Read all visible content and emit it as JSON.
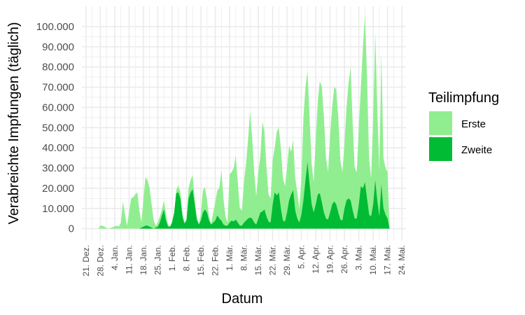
{
  "chart_data": {
    "type": "area",
    "stacked": true,
    "xlabel": "Datum",
    "ylabel": "Verabreichte Impfungen (täglich)",
    "x_domain": [
      "2020-12-19",
      "2021-05-26"
    ],
    "ylim": [
      -6000,
      110000
    ],
    "y_ticks": [
      0,
      10000,
      20000,
      30000,
      40000,
      50000,
      60000,
      70000,
      80000,
      90000,
      100000
    ],
    "y_tick_labels": [
      "0",
      "10.000",
      "20.000",
      "30.000",
      "40.000",
      "50.000",
      "60.000",
      "70.000",
      "80.000",
      "90.000",
      "100.000"
    ],
    "x_ticks": [
      "2020-12-21",
      "2020-12-28",
      "2021-01-04",
      "2021-01-11",
      "2021-01-18",
      "2021-01-25",
      "2021-02-01",
      "2021-02-08",
      "2021-02-15",
      "2021-02-22",
      "2021-03-01",
      "2021-03-08",
      "2021-03-15",
      "2021-03-22",
      "2021-03-29",
      "2021-04-05",
      "2021-04-12",
      "2021-04-19",
      "2021-04-26",
      "2021-05-03",
      "2021-05-10",
      "2021-05-17",
      "2021-05-24"
    ],
    "x_tick_labels": [
      "21. Dez.",
      "28. Dez.",
      "4. Jan.",
      "11. Jan.",
      "18. Jan.",
      "25. Jan.",
      "1. Feb.",
      "8. Feb.",
      "15. Feb.",
      "22. Feb.",
      "1. Mär.",
      "8. Mär.",
      "15. Mär.",
      "22. Mär.",
      "29. Mär.",
      "5. Apr.",
      "12. Apr.",
      "19. Apr.",
      "26. Apr.",
      "3. Mai.",
      "10. Mai.",
      "17. Mai.",
      "24. Mai."
    ],
    "grid": true,
    "legend_position": "right",
    "legend_title": "Teilimpfung",
    "colors": {
      "Erste": "#90ee90",
      "Zweite": "#00bb33"
    },
    "series": [
      {
        "name": "Erste",
        "points": [
          [
            "2020-12-27",
            0
          ],
          [
            "2020-12-28",
            1500
          ],
          [
            "2020-12-29",
            1500
          ],
          [
            "2020-12-30",
            1000
          ],
          [
            "2020-12-31",
            300
          ],
          [
            "2021-01-01",
            0
          ],
          [
            "2021-01-05",
            1500
          ],
          [
            "2021-01-06",
            1000
          ],
          [
            "2021-01-07",
            3000
          ],
          [
            "2021-01-08",
            13500
          ],
          [
            "2021-01-09",
            7000
          ],
          [
            "2021-01-10",
            1500
          ],
          [
            "2021-01-12",
            15000
          ],
          [
            "2021-01-13",
            15500
          ],
          [
            "2021-01-14",
            17000
          ],
          [
            "2021-01-15",
            18000
          ],
          [
            "2021-01-16",
            9000
          ],
          [
            "2021-01-17",
            3000
          ],
          [
            "2021-01-18",
            14500
          ],
          [
            "2021-01-19",
            25500
          ],
          [
            "2021-01-20",
            24000
          ],
          [
            "2021-01-21",
            20000
          ],
          [
            "2021-01-22",
            12000
          ],
          [
            "2021-01-23",
            4000
          ],
          [
            "2021-01-24",
            1500
          ],
          [
            "2021-01-25",
            3000
          ],
          [
            "2021-01-26",
            6000
          ],
          [
            "2021-01-27",
            9500
          ],
          [
            "2021-01-28",
            14000
          ],
          [
            "2021-01-29",
            7000
          ],
          [
            "2021-01-30",
            2000
          ],
          [
            "2021-01-31",
            1000
          ],
          [
            "2021-02-01",
            4000
          ],
          [
            "2021-02-02",
            8000
          ],
          [
            "2021-02-03",
            19000
          ],
          [
            "2021-02-04",
            21500
          ],
          [
            "2021-02-05",
            18000
          ],
          [
            "2021-02-06",
            8000
          ],
          [
            "2021-02-07",
            3000
          ],
          [
            "2021-02-08",
            5000
          ],
          [
            "2021-02-09",
            20000
          ],
          [
            "2021-02-10",
            24000
          ],
          [
            "2021-02-11",
            26500
          ],
          [
            "2021-02-12",
            15000
          ],
          [
            "2021-02-13",
            6000
          ],
          [
            "2021-02-14",
            2500
          ],
          [
            "2021-02-15",
            7000
          ],
          [
            "2021-02-16",
            19000
          ],
          [
            "2021-02-17",
            20500
          ],
          [
            "2021-02-18",
            14000
          ],
          [
            "2021-02-19",
            6000
          ],
          [
            "2021-02-20",
            2500
          ],
          [
            "2021-02-22",
            13000
          ],
          [
            "2021-02-23",
            19000
          ],
          [
            "2021-02-24",
            20000
          ],
          [
            "2021-02-25",
            29000
          ],
          [
            "2021-02-26",
            15000
          ],
          [
            "2021-02-27",
            6000
          ],
          [
            "2021-02-28",
            3000
          ],
          [
            "2021-03-01",
            27000
          ],
          [
            "2021-03-02",
            28000
          ],
          [
            "2021-03-03",
            30000
          ],
          [
            "2021-03-04",
            36000
          ],
          [
            "2021-03-05",
            23000
          ],
          [
            "2021-03-06",
            10000
          ],
          [
            "2021-03-07",
            9000
          ],
          [
            "2021-03-08",
            23000
          ],
          [
            "2021-03-09",
            32000
          ],
          [
            "2021-03-10",
            44000
          ],
          [
            "2021-03-11",
            58000
          ],
          [
            "2021-03-12",
            45000
          ],
          [
            "2021-03-13",
            28000
          ],
          [
            "2021-03-14",
            16000
          ],
          [
            "2021-03-15",
            28000
          ],
          [
            "2021-03-16",
            36000
          ],
          [
            "2021-03-17",
            53000
          ],
          [
            "2021-03-18",
            48000
          ],
          [
            "2021-03-19",
            30000
          ],
          [
            "2021-03-20",
            17000
          ],
          [
            "2021-03-21",
            15000
          ],
          [
            "2021-03-22",
            34000
          ],
          [
            "2021-03-23",
            40000
          ],
          [
            "2021-03-24",
            48000
          ],
          [
            "2021-03-25",
            50000
          ],
          [
            "2021-03-26",
            40000
          ],
          [
            "2021-03-27",
            25000
          ],
          [
            "2021-03-28",
            21000
          ],
          [
            "2021-03-29",
            30000
          ],
          [
            "2021-03-30",
            41000
          ],
          [
            "2021-03-31",
            38000
          ],
          [
            "2021-04-01",
            44000
          ],
          [
            "2021-04-02",
            25000
          ],
          [
            "2021-04-03",
            18000
          ],
          [
            "2021-04-04",
            10000
          ],
          [
            "2021-04-05",
            24000
          ],
          [
            "2021-04-06",
            55000
          ],
          [
            "2021-04-07",
            70000
          ],
          [
            "2021-04-08",
            78000
          ],
          [
            "2021-04-09",
            55000
          ],
          [
            "2021-04-10",
            32000
          ],
          [
            "2021-04-11",
            23000
          ],
          [
            "2021-04-12",
            44000
          ],
          [
            "2021-04-13",
            63000
          ],
          [
            "2021-04-14",
            73000
          ],
          [
            "2021-04-15",
            70000
          ],
          [
            "2021-04-16",
            55000
          ],
          [
            "2021-04-17",
            35000
          ],
          [
            "2021-04-18",
            28000
          ],
          [
            "2021-04-19",
            46000
          ],
          [
            "2021-04-20",
            60000
          ],
          [
            "2021-04-21",
            70000
          ],
          [
            "2021-04-22",
            69000
          ],
          [
            "2021-04-23",
            55000
          ],
          [
            "2021-04-24",
            34000
          ],
          [
            "2021-04-25",
            28000
          ],
          [
            "2021-04-26",
            42000
          ],
          [
            "2021-04-27",
            60000
          ],
          [
            "2021-04-28",
            72000
          ],
          [
            "2021-04-29",
            80000
          ],
          [
            "2021-04-30",
            52000
          ],
          [
            "2021-05-01",
            30000
          ],
          [
            "2021-05-02",
            28000
          ],
          [
            "2021-05-03",
            50000
          ],
          [
            "2021-05-04",
            70000
          ],
          [
            "2021-05-05",
            90000
          ],
          [
            "2021-05-06",
            106000
          ],
          [
            "2021-05-07",
            75000
          ],
          [
            "2021-05-08",
            35000
          ],
          [
            "2021-05-09",
            25000
          ],
          [
            "2021-05-10",
            55000
          ],
          [
            "2021-05-11",
            97000
          ],
          [
            "2021-05-12",
            60000
          ],
          [
            "2021-05-13",
            28000
          ],
          [
            "2021-05-14",
            87000
          ],
          [
            "2021-05-15",
            35000
          ],
          [
            "2021-05-16",
            30000
          ],
          [
            "2021-05-17",
            28000
          ],
          [
            "2021-05-18",
            0
          ]
        ]
      },
      {
        "name": "Zweite",
        "points": [
          [
            "2021-01-16",
            0
          ],
          [
            "2021-01-17",
            500
          ],
          [
            "2021-01-18",
            1000
          ],
          [
            "2021-01-19",
            1500
          ],
          [
            "2021-01-20",
            1500
          ],
          [
            "2021-01-21",
            1000
          ],
          [
            "2021-01-22",
            500
          ],
          [
            "2021-01-23",
            0
          ],
          [
            "2021-01-25",
            1000
          ],
          [
            "2021-01-26",
            3000
          ],
          [
            "2021-01-27",
            6500
          ],
          [
            "2021-01-28",
            9500
          ],
          [
            "2021-01-29",
            4000
          ],
          [
            "2021-01-30",
            1000
          ],
          [
            "2021-01-31",
            1000
          ],
          [
            "2021-02-01",
            3000
          ],
          [
            "2021-02-02",
            8000
          ],
          [
            "2021-02-03",
            17500
          ],
          [
            "2021-02-04",
            18000
          ],
          [
            "2021-02-05",
            15000
          ],
          [
            "2021-02-06",
            6000
          ],
          [
            "2021-02-07",
            2500
          ],
          [
            "2021-02-08",
            4000
          ],
          [
            "2021-02-09",
            15000
          ],
          [
            "2021-02-10",
            18000
          ],
          [
            "2021-02-11",
            19500
          ],
          [
            "2021-02-12",
            12000
          ],
          [
            "2021-02-13",
            4500
          ],
          [
            "2021-02-14",
            2000
          ],
          [
            "2021-02-15",
            4000
          ],
          [
            "2021-02-16",
            8000
          ],
          [
            "2021-02-17",
            9500
          ],
          [
            "2021-02-18",
            8000
          ],
          [
            "2021-02-19",
            4000
          ],
          [
            "2021-02-20",
            2000
          ],
          [
            "2021-02-22",
            4000
          ],
          [
            "2021-02-23",
            6500
          ],
          [
            "2021-02-24",
            5000
          ],
          [
            "2021-02-25",
            4000
          ],
          [
            "2021-02-26",
            2000
          ],
          [
            "2021-02-27",
            1500
          ],
          [
            "2021-02-28",
            1500
          ],
          [
            "2021-03-01",
            3000
          ],
          [
            "2021-03-02",
            4000
          ],
          [
            "2021-03-03",
            3500
          ],
          [
            "2021-03-04",
            4500
          ],
          [
            "2021-03-05",
            3000
          ],
          [
            "2021-03-06",
            1500
          ],
          [
            "2021-03-07",
            1500
          ],
          [
            "2021-03-08",
            3000
          ],
          [
            "2021-03-09",
            4000
          ],
          [
            "2021-03-10",
            5000
          ],
          [
            "2021-03-11",
            5500
          ],
          [
            "2021-03-12",
            5000
          ],
          [
            "2021-03-13",
            3000
          ],
          [
            "2021-03-14",
            2000
          ],
          [
            "2021-03-15",
            5000
          ],
          [
            "2021-03-16",
            8000
          ],
          [
            "2021-03-17",
            8500
          ],
          [
            "2021-03-18",
            9500
          ],
          [
            "2021-03-19",
            6000
          ],
          [
            "2021-03-20",
            3500
          ],
          [
            "2021-03-21",
            3000
          ],
          [
            "2021-03-22",
            12000
          ],
          [
            "2021-03-23",
            18000
          ],
          [
            "2021-03-24",
            16500
          ],
          [
            "2021-03-25",
            18000
          ],
          [
            "2021-03-26",
            10000
          ],
          [
            "2021-03-27",
            4000
          ],
          [
            "2021-03-28",
            3500
          ],
          [
            "2021-03-29",
            8000
          ],
          [
            "2021-03-30",
            14000
          ],
          [
            "2021-03-31",
            17000
          ],
          [
            "2021-04-01",
            19000
          ],
          [
            "2021-04-02",
            9000
          ],
          [
            "2021-04-03",
            5000
          ],
          [
            "2021-04-04",
            3000
          ],
          [
            "2021-04-05",
            7000
          ],
          [
            "2021-04-06",
            14000
          ],
          [
            "2021-04-07",
            24000
          ],
          [
            "2021-04-08",
            33000
          ],
          [
            "2021-04-09",
            22000
          ],
          [
            "2021-04-10",
            12000
          ],
          [
            "2021-04-11",
            8000
          ],
          [
            "2021-04-12",
            12000
          ],
          [
            "2021-04-13",
            17000
          ],
          [
            "2021-04-14",
            17500
          ],
          [
            "2021-04-15",
            13000
          ],
          [
            "2021-04-16",
            8000
          ],
          [
            "2021-04-17",
            5000
          ],
          [
            "2021-04-18",
            4500
          ],
          [
            "2021-04-19",
            8000
          ],
          [
            "2021-04-20",
            12000
          ],
          [
            "2021-04-21",
            13500
          ],
          [
            "2021-04-22",
            12000
          ],
          [
            "2021-04-23",
            8000
          ],
          [
            "2021-04-24",
            4500
          ],
          [
            "2021-04-25",
            4000
          ],
          [
            "2021-04-26",
            10000
          ],
          [
            "2021-04-27",
            14000
          ],
          [
            "2021-04-28",
            15000
          ],
          [
            "2021-04-29",
            14000
          ],
          [
            "2021-04-30",
            9000
          ],
          [
            "2021-05-01",
            5000
          ],
          [
            "2021-05-02",
            5000
          ],
          [
            "2021-05-03",
            12000
          ],
          [
            "2021-05-04",
            21000
          ],
          [
            "2021-05-05",
            20000
          ],
          [
            "2021-05-06",
            23000
          ],
          [
            "2021-05-07",
            15000
          ],
          [
            "2021-05-08",
            7000
          ],
          [
            "2021-05-09",
            6000
          ],
          [
            "2021-05-10",
            12000
          ],
          [
            "2021-05-11",
            24000
          ],
          [
            "2021-05-12",
            14000
          ],
          [
            "2021-05-13",
            6000
          ],
          [
            "2021-05-14",
            22000
          ],
          [
            "2021-05-15",
            10000
          ],
          [
            "2021-05-16",
            7000
          ],
          [
            "2021-05-17",
            5000
          ],
          [
            "2021-05-18",
            0
          ]
        ]
      }
    ]
  }
}
